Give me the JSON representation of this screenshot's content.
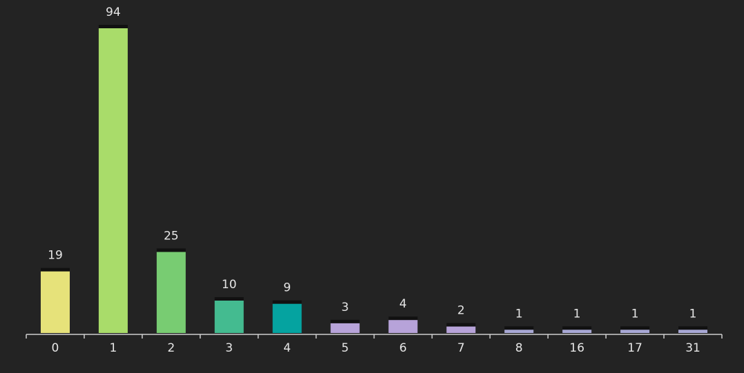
{
  "chart_data": {
    "type": "bar",
    "categories": [
      "0",
      "1",
      "2",
      "3",
      "4",
      "5",
      "6",
      "7",
      "8",
      "16",
      "17",
      "31"
    ],
    "values": [
      19,
      94,
      25,
      10,
      9,
      3,
      4,
      2,
      1,
      1,
      1,
      1
    ],
    "colors": [
      "#e6e27a",
      "#a9dc6a",
      "#78cc72",
      "#44bb90",
      "#05a3a0",
      "#b7a3d9",
      "#b7a3d9",
      "#b7a3d9",
      "#a9a9d6",
      "#a9a9d6",
      "#a9a9d6",
      "#a9a9d6"
    ]
  }
}
